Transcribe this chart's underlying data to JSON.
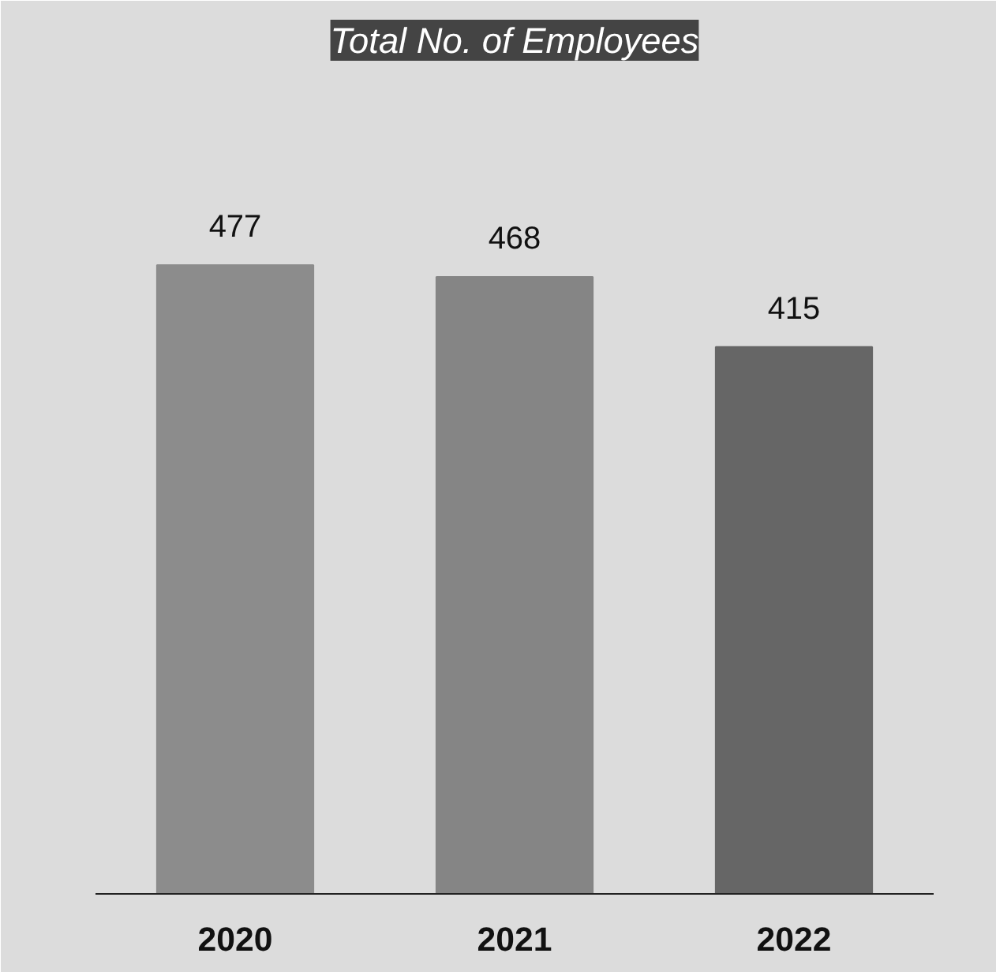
{
  "chart_data": {
    "type": "bar",
    "title": "Total No. of Employees",
    "categories": [
      "2020",
      "2021",
      "2022"
    ],
    "values": [
      477,
      468,
      415
    ],
    "colors": [
      "#8c8c8c",
      "#858585",
      "#666666"
    ],
    "data_labels": true,
    "tick_labels": "x"
  }
}
